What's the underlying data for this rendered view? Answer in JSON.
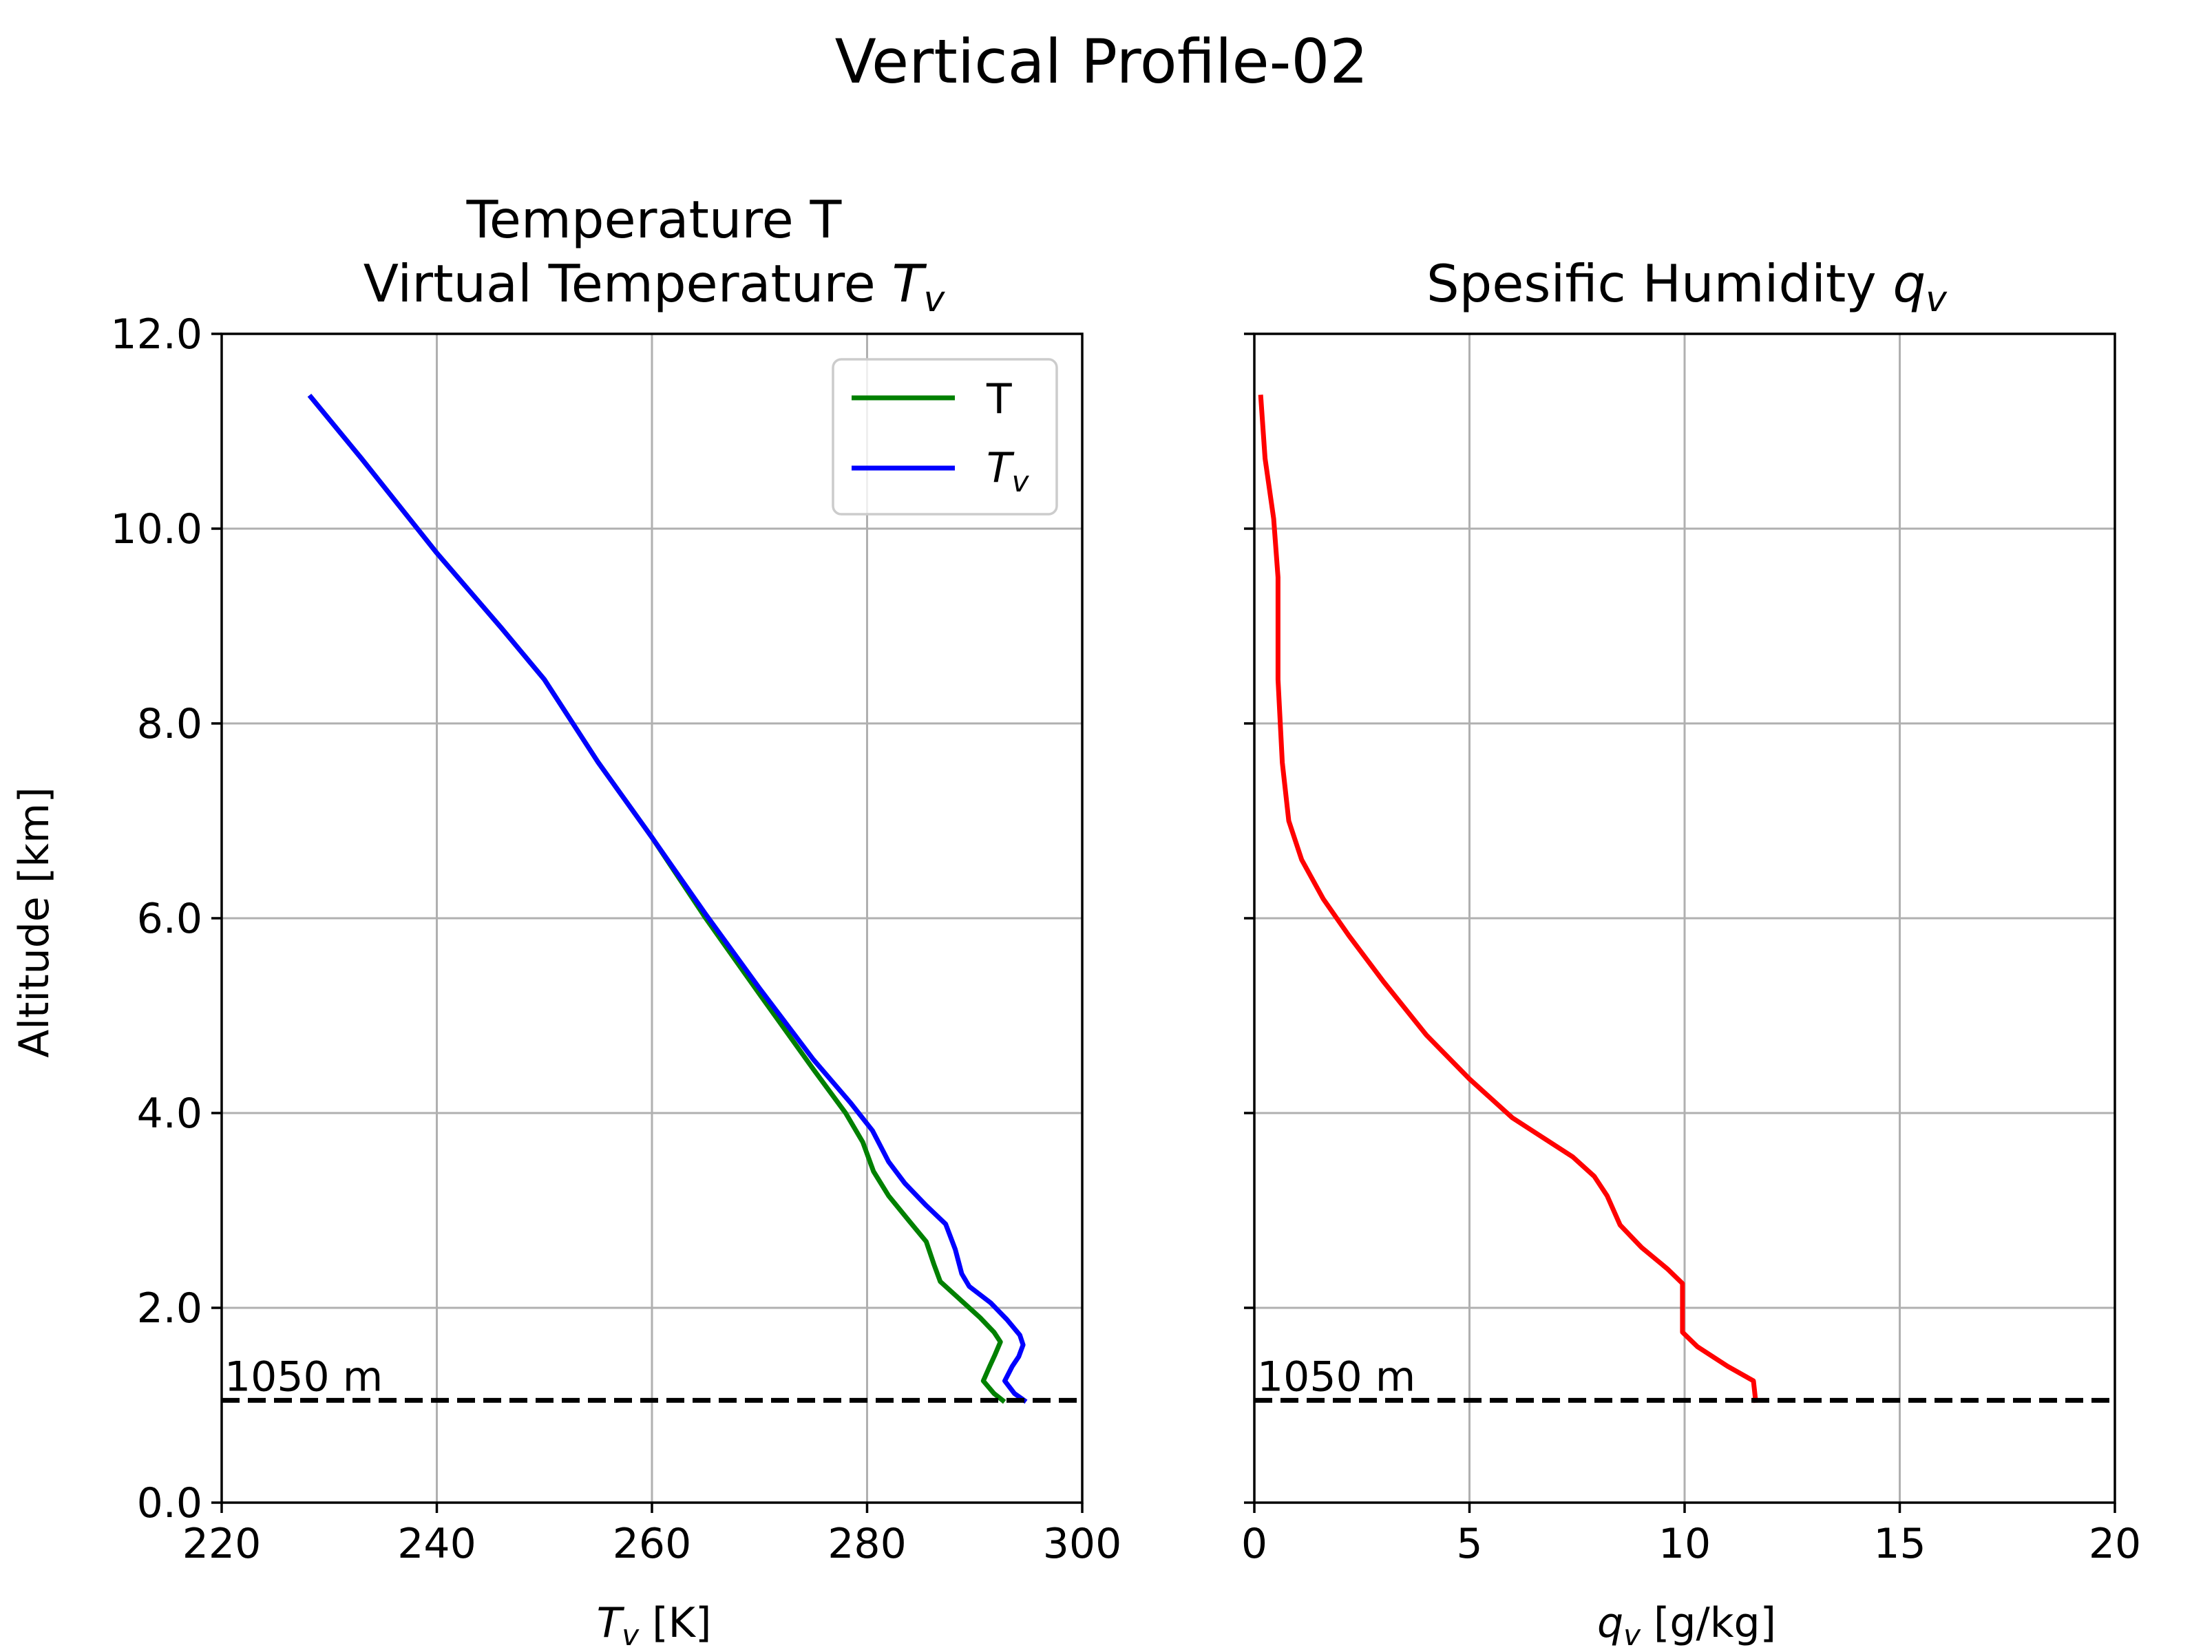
{
  "figure": {
    "suptitle": "Vertical Profile-02",
    "ylabel": "Altitude [km]"
  },
  "chart_data": [
    {
      "type": "line",
      "title_line1": "Temperature T",
      "title_line2": "Virtual Temperature ",
      "title_math": "T",
      "title_math_sub": "v",
      "xlabel_math": "T",
      "xlabel_math_sub": "v",
      "xlabel_rest": " [K]",
      "ylabel": "Altitude [km]",
      "xlim": [
        220,
        300
      ],
      "ylim": [
        0,
        12
      ],
      "xticks": [
        "220",
        "240",
        "260",
        "280",
        "300"
      ],
      "yticks": [
        "0.0",
        "2.0",
        "4.0",
        "6.0",
        "8.0",
        "10.0",
        "12.0"
      ],
      "grid": true,
      "legend": "top-right",
      "series": [
        {
          "name": "T",
          "color": "#008000",
          "points": [
            [
              228.3,
              11.35
            ],
            [
              233,
              10.72
            ],
            [
              240,
              9.75
            ],
            [
              246,
              8.98
            ],
            [
              250,
              8.45
            ],
            [
              255,
              7.6
            ],
            [
              260,
              6.83
            ],
            [
              265,
              6.0
            ],
            [
              270,
              5.22
            ],
            [
              275,
              4.45
            ],
            [
              278,
              4.0
            ],
            [
              279.6,
              3.7
            ],
            [
              280.6,
              3.4
            ],
            [
              282,
              3.15
            ],
            [
              284,
              2.88
            ],
            [
              285.5,
              2.68
            ],
            [
              286.2,
              2.45
            ],
            [
              286.8,
              2.27
            ],
            [
              288.5,
              2.1
            ],
            [
              290.5,
              1.9
            ],
            [
              291.8,
              1.75
            ],
            [
              292.4,
              1.65
            ],
            [
              291.9,
              1.52
            ],
            [
              291.4,
              1.4
            ],
            [
              290.8,
              1.25
            ],
            [
              291.8,
              1.12
            ],
            [
              292.6,
              1.05
            ]
          ]
        },
        {
          "name": "T_v",
          "label_math": "T",
          "label_math_sub": "v",
          "color": "#0000ff",
          "points": [
            [
              228.3,
              11.35
            ],
            [
              233,
              10.72
            ],
            [
              240,
              9.75
            ],
            [
              246,
              8.98
            ],
            [
              250,
              8.45
            ],
            [
              255,
              7.6
            ],
            [
              260,
              6.83
            ],
            [
              265,
              6.04
            ],
            [
              270,
              5.28
            ],
            [
              275,
              4.55
            ],
            [
              278.5,
              4.1
            ],
            [
              280.5,
              3.82
            ],
            [
              282,
              3.5
            ],
            [
              283.5,
              3.28
            ],
            [
              285.5,
              3.05
            ],
            [
              287.3,
              2.86
            ],
            [
              288.2,
              2.6
            ],
            [
              288.8,
              2.35
            ],
            [
              289.5,
              2.22
            ],
            [
              291.5,
              2.05
            ],
            [
              293,
              1.88
            ],
            [
              294.2,
              1.72
            ],
            [
              294.5,
              1.62
            ],
            [
              294.1,
              1.5
            ],
            [
              293.5,
              1.4
            ],
            [
              292.8,
              1.25
            ],
            [
              293.7,
              1.12
            ],
            [
              294.6,
              1.05
            ]
          ]
        }
      ],
      "hline": {
        "y": 1.05,
        "label": "1050 m"
      }
    },
    {
      "type": "line",
      "title": "Spesific Humidity ",
      "title_math": "q",
      "title_math_sub": "v",
      "xlabel_math": "q",
      "xlabel_math_sub": "v",
      "xlabel_rest": " [g/kg]",
      "xlim": [
        0,
        20
      ],
      "ylim": [
        0,
        12
      ],
      "xticks": [
        "0",
        "5",
        "10",
        "15",
        "20"
      ],
      "grid": true,
      "series": [
        {
          "color": "#ff0000",
          "points": [
            [
              0.15,
              11.35
            ],
            [
              0.25,
              10.72
            ],
            [
              0.45,
              10.1
            ],
            [
              0.55,
              9.5
            ],
            [
              0.55,
              8.45
            ],
            [
              0.65,
              7.6
            ],
            [
              0.8,
              7.0
            ],
            [
              1.1,
              6.6
            ],
            [
              1.6,
              6.2
            ],
            [
              2.2,
              5.82
            ],
            [
              3.0,
              5.35
            ],
            [
              4.0,
              4.8
            ],
            [
              5.0,
              4.35
            ],
            [
              6.0,
              3.95
            ],
            [
              6.7,
              3.75
            ],
            [
              7.4,
              3.55
            ],
            [
              7.9,
              3.35
            ],
            [
              8.2,
              3.15
            ],
            [
              8.5,
              2.85
            ],
            [
              9.0,
              2.62
            ],
            [
              9.6,
              2.4
            ],
            [
              9.95,
              2.25
            ],
            [
              9.95,
              2.0
            ],
            [
              9.95,
              1.75
            ],
            [
              10.3,
              1.6
            ],
            [
              11.0,
              1.4
            ],
            [
              11.6,
              1.25
            ],
            [
              11.65,
              1.05
            ]
          ]
        }
      ],
      "hline": {
        "y": 1.05,
        "label": "1050 m"
      }
    }
  ]
}
